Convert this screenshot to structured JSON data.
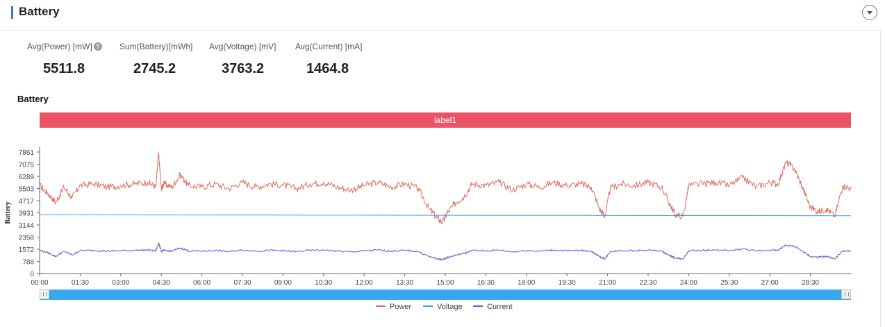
{
  "header": {
    "title": "Battery"
  },
  "stats": [
    {
      "label": "Avg(Power) [mW]",
      "value": "5511.8",
      "help": "?"
    },
    {
      "label": "Sum(Battery)[mWh]",
      "value": "2745.2"
    },
    {
      "label": "Avg(Voltage) [mV]",
      "value": "3763.2"
    },
    {
      "label": "Avg(Current) [mA]",
      "value": "1464.8"
    }
  ],
  "chart_data": {
    "type": "line",
    "title": "Battery",
    "band_label": "label1",
    "ylabel": "Battery",
    "ylim": [
      0,
      7861
    ],
    "yticks": [
      "7861",
      "7075",
      "6289",
      "5503",
      "4717",
      "3931",
      "3144",
      "2358",
      "1572",
      "786",
      "0"
    ],
    "xlim_minutes": [
      0,
      30
    ],
    "xticks": [
      "00:00",
      "01:30",
      "03:00",
      "04:30",
      "06:00",
      "07:30",
      "09:00",
      "10:30",
      "12:00",
      "13:30",
      "15:00",
      "16:30",
      "18:00",
      "19:30",
      "21:00",
      "22:30",
      "24:00",
      "25:30",
      "27:00",
      "28:30"
    ],
    "legend_position": "bottom",
    "series": [
      {
        "name": "Power",
        "color": "#e06e5e",
        "x": [
          0,
          0.3,
          0.6,
          0.9,
          1.2,
          1.5,
          2.0,
          2.5,
          3.0,
          3.5,
          4.0,
          4.3,
          4.4,
          4.5,
          4.6,
          4.9,
          5.2,
          5.5,
          6.0,
          6.5,
          7.0,
          7.5,
          8.0,
          8.5,
          9.0,
          9.5,
          10.0,
          10.5,
          11.0,
          11.5,
          12.0,
          12.5,
          13.0,
          13.5,
          14.0,
          14.4,
          14.7,
          14.9,
          15.1,
          15.4,
          15.7,
          16.0,
          16.5,
          17.0,
          17.5,
          18.0,
          18.5,
          19.0,
          19.5,
          20.0,
          20.4,
          20.7,
          20.9,
          21.1,
          21.5,
          22.0,
          22.5,
          23.0,
          23.3,
          23.5,
          23.8,
          24.0,
          24.5,
          25.0,
          25.5,
          26.0,
          26.5,
          27.0,
          27.3,
          27.6,
          27.9,
          28.2,
          28.5,
          28.8,
          29.1,
          29.4,
          29.7,
          30.0
        ],
        "values": [
          5700,
          5200,
          4600,
          5600,
          4900,
          5700,
          5800,
          5600,
          5700,
          5800,
          5900,
          5600,
          7800,
          5500,
          5800,
          5600,
          6400,
          5700,
          5600,
          5800,
          5500,
          5900,
          5600,
          5800,
          5700,
          5500,
          5800,
          5900,
          5600,
          5400,
          5700,
          5900,
          5600,
          5800,
          5500,
          4200,
          3600,
          3300,
          4000,
          4600,
          5000,
          5800,
          5700,
          5900,
          5400,
          5800,
          5600,
          5900,
          5700,
          5800,
          5600,
          4200,
          3700,
          5500,
          5800,
          5700,
          5900,
          5600,
          4500,
          3800,
          3700,
          5700,
          5800,
          5900,
          5700,
          6200,
          5600,
          5900,
          5800,
          7200,
          6800,
          5600,
          4300,
          4000,
          4200,
          3700,
          5700,
          5500
        ]
      },
      {
        "name": "Voltage",
        "color": "#3a9ff0",
        "x": [
          0,
          10,
          20,
          30
        ],
        "values": [
          3800,
          3780,
          3760,
          3740
        ]
      },
      {
        "name": "Current",
        "color": "#7a4fd0",
        "x": [
          0,
          0.3,
          0.6,
          0.9,
          1.2,
          1.5,
          2.0,
          2.5,
          3.0,
          3.5,
          4.0,
          4.3,
          4.4,
          4.5,
          4.6,
          4.9,
          5.2,
          5.5,
          6.0,
          6.5,
          7.0,
          7.5,
          8.0,
          8.5,
          9.0,
          9.5,
          10.0,
          10.5,
          11.0,
          11.5,
          12.0,
          12.5,
          13.0,
          13.5,
          14.0,
          14.4,
          14.7,
          14.9,
          15.1,
          15.4,
          15.7,
          16.0,
          16.5,
          17.0,
          17.5,
          18.0,
          18.5,
          19.0,
          19.5,
          20.0,
          20.4,
          20.7,
          20.9,
          21.1,
          21.5,
          22.0,
          22.5,
          23.0,
          23.3,
          23.5,
          23.8,
          24.0,
          24.5,
          25.0,
          25.5,
          26.0,
          26.5,
          27.0,
          27.3,
          27.6,
          27.9,
          28.2,
          28.5,
          28.8,
          29.1,
          29.4,
          29.7,
          30.0
        ],
        "values": [
          1500,
          1350,
          1100,
          1450,
          1200,
          1480,
          1500,
          1450,
          1480,
          1500,
          1520,
          1460,
          2000,
          1420,
          1500,
          1450,
          1650,
          1470,
          1450,
          1500,
          1420,
          1520,
          1450,
          1500,
          1470,
          1420,
          1500,
          1520,
          1450,
          1400,
          1470,
          1520,
          1450,
          1500,
          1420,
          1100,
          950,
          900,
          1050,
          1200,
          1300,
          1500,
          1470,
          1520,
          1400,
          1500,
          1450,
          1520,
          1470,
          1500,
          1450,
          1100,
          950,
          1420,
          1500,
          1470,
          1520,
          1450,
          1150,
          1000,
          950,
          1470,
          1500,
          1520,
          1470,
          1600,
          1450,
          1520,
          1500,
          1850,
          1750,
          1450,
          1100,
          1050,
          1100,
          950,
          1470,
          1420
        ]
      }
    ]
  },
  "slider": {
    "start": 0,
    "end": 1
  }
}
